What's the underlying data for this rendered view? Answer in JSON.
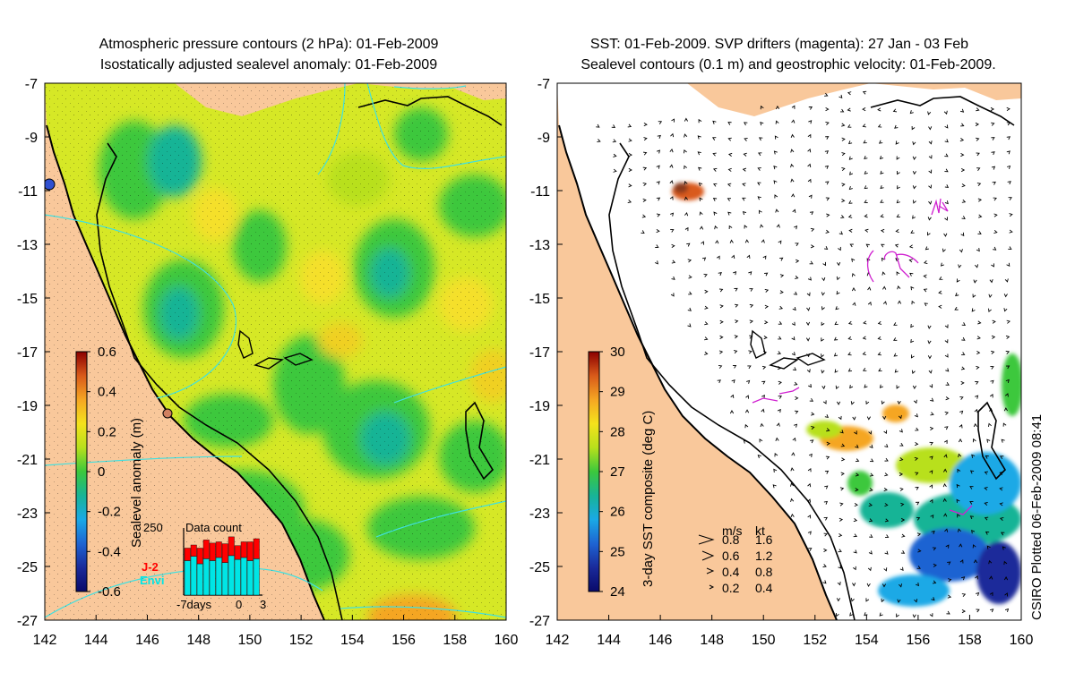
{
  "left_panel": {
    "title_line1": "Atmospheric pressure contours (2 hPa): 01-Feb-2009",
    "title_line2": "Isostatically adjusted sealevel anomaly: 01-Feb-2009",
    "colorbar": {
      "label": "Sealevel anomaly (m)",
      "ticks": [
        "0.6",
        "0.4",
        "0.2",
        "0",
        "-0.2",
        "-0.4",
        "-0.6"
      ],
      "stops": [
        "#8b0000",
        "#d95a1a",
        "#f5a623",
        "#f4e21c",
        "#b8e01c",
        "#3cc83c",
        "#18b496",
        "#1aa9e6",
        "#1e64d2",
        "#1a2a9a",
        "#0a0a6a"
      ]
    },
    "inset": {
      "title": "Data count",
      "ymax_label": "250",
      "x_ticks": [
        "-7days",
        "0",
        "3"
      ],
      "legend": [
        {
          "name": "J-2",
          "color": "#ff0000"
        },
        {
          "name": "Envi",
          "color": "#00e5e5"
        }
      ],
      "env_values": [
        0.55,
        0.62,
        0.5,
        0.58,
        0.55,
        0.6,
        0.52,
        0.63,
        0.57,
        0.6,
        0.55,
        0.58
      ],
      "j2_values": [
        0.2,
        0.18,
        0.25,
        0.3,
        0.28,
        0.25,
        0.3,
        0.3,
        0.22,
        0.25,
        0.3,
        0.32
      ]
    },
    "colors": {
      "land": "#f9c89b",
      "ocean_base": "#d6e826"
    }
  },
  "right_panel": {
    "title_line1": "SST: 01-Feb-2009. SVP drifters (magenta): 27 Jan - 03 Feb",
    "title_line2": "Sealevel contours (0.1 m) and geostrophic velocity: 01-Feb-2009.",
    "colorbar": {
      "label": "3-day SST composite (deg C)",
      "ticks": [
        "30",
        "29",
        "28",
        "27",
        "26",
        "25",
        "24"
      ],
      "stops": [
        "#8b0000",
        "#d95a1a",
        "#f5a623",
        "#f4e21c",
        "#b8e01c",
        "#3cc83c",
        "#18b496",
        "#1aa9e6",
        "#1e64d2",
        "#1a2a9a",
        "#0a0a6a"
      ]
    },
    "speed_legend": {
      "header_ms": "m/s",
      "header_kt": "kt",
      "rows": [
        {
          "ms": "0.8",
          "kt": "1.6"
        },
        {
          "ms": "0.6",
          "kt": "1.2"
        },
        {
          "ms": "0.4",
          "kt": "0.8"
        },
        {
          "ms": "0.2",
          "kt": "0.4"
        }
      ]
    },
    "credit": "CSIRO Plotted 06-Feb-2009 08:41"
  },
  "axes": {
    "x_ticks": [
      "142",
      "144",
      "146",
      "148",
      "150",
      "152",
      "154",
      "156",
      "158",
      "160"
    ],
    "y_ticks": [
      "-7",
      "-9",
      "-11",
      "-13",
      "-15",
      "-17",
      "-19",
      "-21",
      "-23",
      "-25",
      "-27"
    ],
    "xlim": [
      142,
      160
    ],
    "ylim": [
      -27,
      -7
    ]
  }
}
